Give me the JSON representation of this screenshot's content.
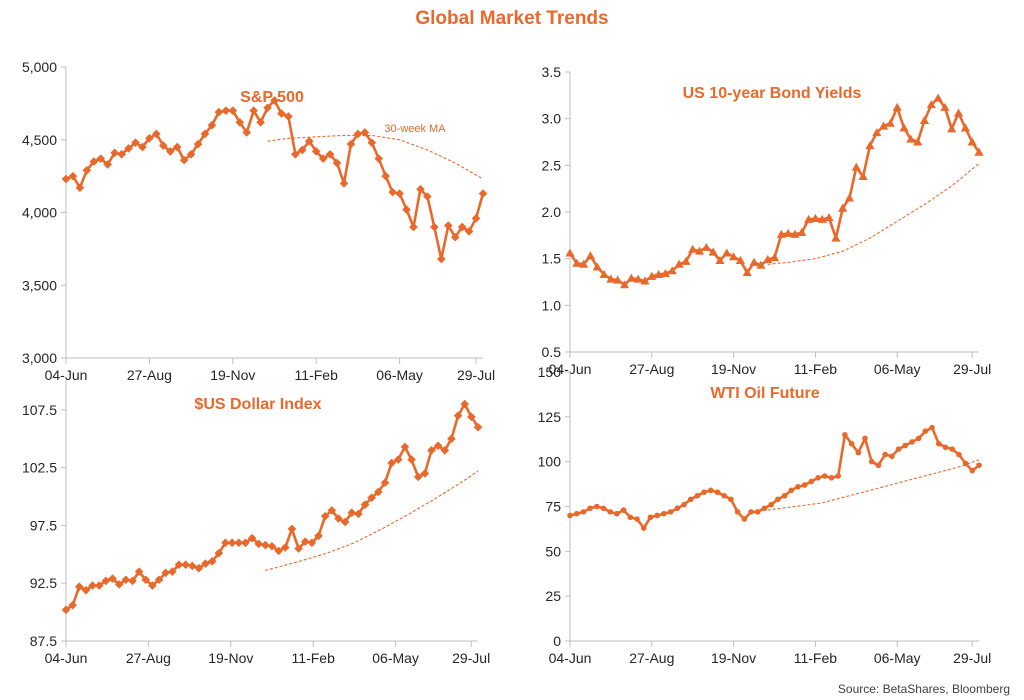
{
  "title": "Global Market Trends",
  "source": "Source: BetaShares, Bloomberg",
  "colors": {
    "accent": "#e8692b",
    "axis_line": "#bfbfbf",
    "tick_text": "#262626",
    "background": "#ffffff"
  },
  "chart_data": [
    {
      "type": "line",
      "title": "S&P 500",
      "marker": "diamond",
      "ylim": [
        3000,
        5000
      ],
      "yticks": [
        3000,
        3500,
        4000,
        4500,
        5000
      ],
      "ytick_labels": [
        "3,000",
        "3,500",
        "4,000",
        "4,500",
        "5,000"
      ],
      "xlim": [
        0,
        60
      ],
      "xtick_positions": [
        0,
        12,
        24,
        36,
        48,
        59
      ],
      "xtick_labels": [
        "04-Jun",
        "27-Aug",
        "19-Nov",
        "11-Feb",
        "06-May",
        "29-Jul"
      ],
      "annotation": "30-week MA",
      "series": [
        {
          "values": [
            4230,
            4250,
            4170,
            4290,
            4350,
            4370,
            4330,
            4410,
            4400,
            4440,
            4480,
            4450,
            4510,
            4540,
            4460,
            4420,
            4450,
            4360,
            4400,
            4470,
            4540,
            4600,
            4690,
            4700,
            4700,
            4620,
            4550,
            4700,
            4620,
            4720,
            4770,
            4680,
            4660,
            4400,
            4430,
            4490,
            4420,
            4370,
            4400,
            4340,
            4200,
            4470,
            4540,
            4550,
            4480,
            4370,
            4250,
            4140,
            4130,
            4020,
            3900,
            4160,
            4110,
            3900,
            3680,
            3910,
            3830,
            3900,
            3870,
            3960,
            4130
          ]
        },
        {
          "name": "30-week MA",
          "dashed": true,
          "x": [
            29,
            32,
            36,
            40,
            44,
            48,
            52,
            56,
            60
          ],
          "values": [
            4490,
            4510,
            4520,
            4530,
            4530,
            4500,
            4430,
            4340,
            4230
          ]
        }
      ]
    },
    {
      "type": "line",
      "title": "US 10-year Bond Yields",
      "marker": "triangle",
      "ylim": [
        0.5,
        3.5
      ],
      "yticks": [
        0.5,
        1.0,
        1.5,
        2.0,
        2.5,
        3.0,
        3.5
      ],
      "ytick_labels": [
        "0.5",
        "1.0",
        "1.5",
        "2.0",
        "2.5",
        "3.0",
        "3.5"
      ],
      "xlim": [
        0,
        60
      ],
      "xtick_positions": [
        0,
        12,
        24,
        36,
        48,
        59
      ],
      "xtick_labels": [
        "04-Jun",
        "27-Aug",
        "19-Nov",
        "11-Feb",
        "06-May",
        "29-Jul"
      ],
      "series": [
        {
          "values": [
            1.56,
            1.45,
            1.44,
            1.53,
            1.41,
            1.33,
            1.28,
            1.27,
            1.22,
            1.29,
            1.28,
            1.26,
            1.31,
            1.33,
            1.34,
            1.37,
            1.44,
            1.47,
            1.6,
            1.58,
            1.62,
            1.57,
            1.48,
            1.56,
            1.52,
            1.48,
            1.35,
            1.46,
            1.43,
            1.49,
            1.51,
            1.76,
            1.77,
            1.76,
            1.78,
            1.92,
            1.93,
            1.92,
            1.94,
            1.72,
            2.04,
            2.15,
            2.48,
            2.38,
            2.71,
            2.85,
            2.92,
            2.95,
            3.12,
            2.9,
            2.78,
            2.75,
            2.98,
            3.15,
            3.22,
            3.12,
            2.89,
            3.06,
            2.9,
            2.75,
            2.64
          ]
        },
        {
          "name": "",
          "dashed": true,
          "x": [
            29,
            32,
            36,
            40,
            44,
            48,
            52,
            56,
            60
          ],
          "values": [
            1.44,
            1.46,
            1.5,
            1.58,
            1.72,
            1.9,
            2.08,
            2.28,
            2.52
          ]
        }
      ]
    },
    {
      "type": "line",
      "title": "$US Dollar Index",
      "marker": "diamond",
      "ylim": [
        87.5,
        110
      ],
      "yticks": [
        87.5,
        92.5,
        97.5,
        102.5,
        107.5
      ],
      "ytick_labels": [
        "87.5",
        "92.5",
        "97.5",
        "102.5",
        "107.5"
      ],
      "xlim": [
        0,
        60
      ],
      "xtick_positions": [
        0,
        12,
        24,
        36,
        48,
        59
      ],
      "xtick_labels": [
        "04-Jun",
        "27-Aug",
        "19-Nov",
        "11-Feb",
        "06-May",
        "29-Jul"
      ],
      "series": [
        {
          "values": [
            90.2,
            90.6,
            92.2,
            91.9,
            92.3,
            92.3,
            92.7,
            92.9,
            92.4,
            92.8,
            92.7,
            93.5,
            92.8,
            92.3,
            92.8,
            93.4,
            93.5,
            94.1,
            94.1,
            94.0,
            93.8,
            94.2,
            94.4,
            95.1,
            96.0,
            96.0,
            96.0,
            96.0,
            96.4,
            95.9,
            95.8,
            95.7,
            95.3,
            95.6,
            97.2,
            95.5,
            96.1,
            96.0,
            96.6,
            98.3,
            98.8,
            98.1,
            97.8,
            98.6,
            98.5,
            99.3,
            99.9,
            100.4,
            101.2,
            102.9,
            103.2,
            104.3,
            103.2,
            101.7,
            102.0,
            104.0,
            104.4,
            104.0,
            105.0,
            107.0,
            108.0,
            106.9,
            106.0
          ]
        },
        {
          "name": "",
          "dashed": true,
          "x": [
            29,
            34,
            38,
            42,
            46,
            50,
            54,
            58,
            60
          ],
          "values": [
            93.6,
            94.4,
            95.1,
            96.0,
            97.2,
            98.5,
            99.9,
            101.4,
            102.2
          ]
        }
      ]
    },
    {
      "type": "line",
      "title": "WTI Oil Future",
      "marker": "circle",
      "ylim": [
        0,
        150
      ],
      "yticks": [
        0,
        25,
        50,
        75,
        100,
        125,
        150
      ],
      "ytick_labels": [
        "0",
        "25",
        "50",
        "75",
        "100",
        "125",
        "150"
      ],
      "xlim": [
        0,
        60
      ],
      "xtick_positions": [
        0,
        12,
        24,
        36,
        48,
        59
      ],
      "xtick_labels": [
        "04-Jun",
        "27-Aug",
        "19-Nov",
        "11-Feb",
        "06-May",
        "29-Jul"
      ],
      "series": [
        {
          "values": [
            70,
            71,
            72,
            74,
            75,
            74,
            72,
            71,
            73,
            69,
            68,
            63,
            69,
            70,
            71,
            72,
            74,
            76,
            79,
            81,
            83,
            84,
            83,
            81,
            79,
            72,
            68,
            72,
            72,
            74,
            76,
            79,
            81,
            84,
            86,
            87,
            89,
            91,
            92,
            91,
            92,
            115,
            110,
            105,
            113,
            100,
            98,
            104,
            103,
            107,
            109,
            111,
            113,
            117,
            119,
            110,
            108,
            107,
            104,
            99,
            95,
            98
          ]
        },
        {
          "name": "",
          "dashed": true,
          "x": [
            29,
            33,
            37,
            41,
            45,
            49,
            53,
            57,
            60
          ],
          "values": [
            73,
            75,
            77,
            81,
            85,
            89,
            93,
            97,
            101
          ]
        }
      ]
    }
  ]
}
